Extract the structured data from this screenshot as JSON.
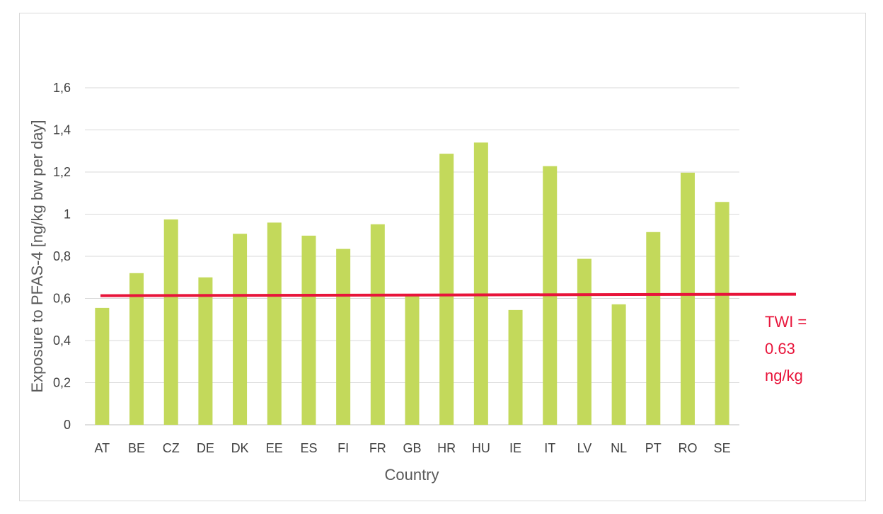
{
  "chart_data": {
    "type": "bar",
    "categories": [
      "AT",
      "BE",
      "CZ",
      "DE",
      "DK",
      "EE",
      "ES",
      "FI",
      "FR",
      "GB",
      "HR",
      "HU",
      "IE",
      "IT",
      "LV",
      "NL",
      "PT",
      "RO",
      "SE"
    ],
    "values": [
      0.555,
      0.72,
      0.975,
      0.7,
      0.907,
      0.96,
      0.898,
      0.835,
      0.952,
      0.615,
      1.287,
      1.34,
      0.545,
      1.228,
      0.788,
      0.572,
      0.915,
      1.197,
      1.058
    ],
    "title": "",
    "xlabel": "Country",
    "ylabel": "Exposure to PFAS-4 [ng/kg bw per day]",
    "ylim": [
      0,
      1.6
    ],
    "yticks": [
      0,
      0.2,
      0.4,
      0.6,
      0.8,
      1.0,
      1.2,
      1.4,
      1.6
    ],
    "ytick_labels": [
      "0",
      "0,2",
      "0,4",
      "0,6",
      "0,8",
      "1",
      "1,2",
      "1,4",
      "1,6"
    ],
    "grid": true,
    "bar_color": "#c3d95b",
    "reference_line": {
      "value": 0.63,
      "color": "#e8143a",
      "label_lines": [
        "TWI =",
        "0.63",
        "ng/kg"
      ]
    }
  }
}
